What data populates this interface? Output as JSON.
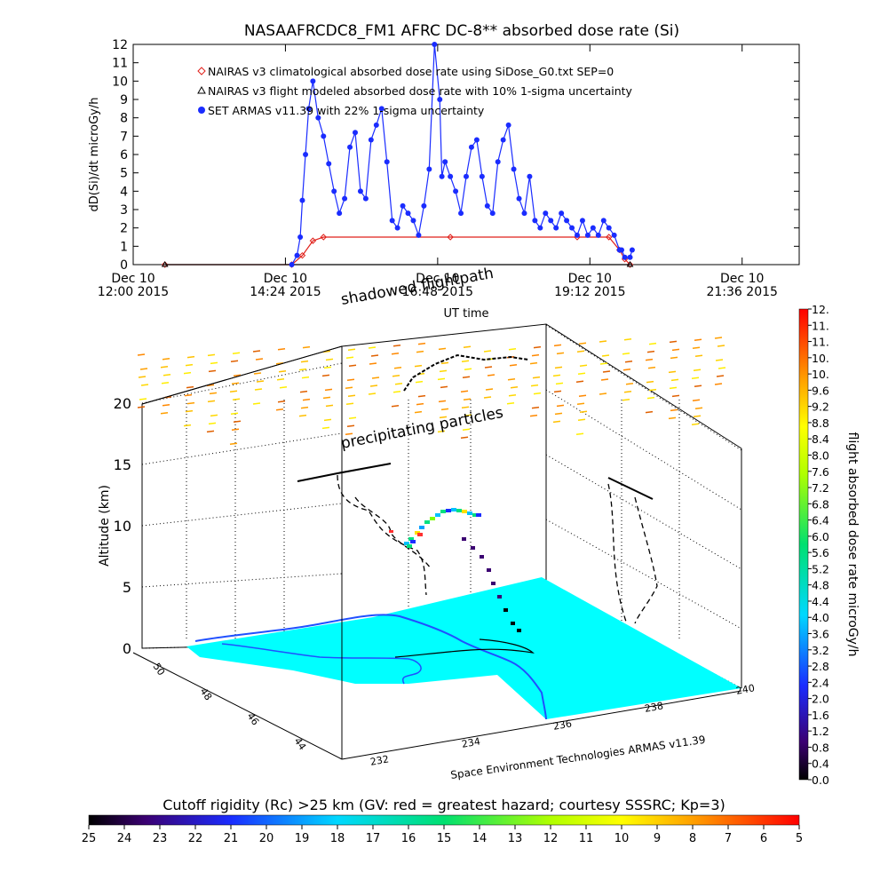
{
  "chart_data": [
    {
      "type": "line",
      "title": "NASAAFRCDC8_FM1 AFRC DC-8** absorbed dose rate (Si)",
      "xlabel": "UT time",
      "ylabel": "dD(Si)/dt microGy/h",
      "ylim": [
        0,
        12
      ],
      "yticks": [
        "0",
        "1",
        "2",
        "3",
        "4",
        "5",
        "6",
        "7",
        "8",
        "9",
        "10",
        "11",
        "12"
      ],
      "xticks": [
        {
          "day": "Dec 10",
          "time": "12:00 2015"
        },
        {
          "day": "Dec 10",
          "time": "14:24 2015"
        },
        {
          "day": "Dec 10",
          "time": "16:48 2015"
        },
        {
          "day": "Dec 10",
          "time": "19:12 2015"
        },
        {
          "day": "Dec 10",
          "time": "21:36 2015"
        }
      ],
      "legend": [
        {
          "label": "NAIRAS v3 climatological absorbed dose rate using SiDose_G0.txt SEP=0",
          "marker": "diamond",
          "color": "#e0201a"
        },
        {
          "label": "NAIRAS v3 flight modeled absorbed dose rate with 10% 1-sigma uncertainty",
          "marker": "triangle",
          "color": "#000000"
        },
        {
          "label": "SET ARMAS v11.39 with 22% 1-sigma uncertainty",
          "marker": "circle",
          "color": "#1a2cff"
        }
      ],
      "series": [
        {
          "name": "SET ARMAS v11.39 with 22% 1-sigma uncertainty",
          "color": "#1a2cff",
          "x": [
            "14:30",
            "14:35",
            "14:38",
            "14:40",
            "14:43",
            "14:46",
            "14:50",
            "14:55",
            "15:00",
            "15:05",
            "15:10",
            "15:15",
            "15:20",
            "15:25",
            "15:30",
            "15:35",
            "15:40",
            "15:45",
            "15:50",
            "15:55",
            "16:00",
            "16:05",
            "16:10",
            "16:15",
            "16:20",
            "16:25",
            "16:30",
            "16:35",
            "16:40",
            "16:45",
            "16:50",
            "16:52",
            "16:55",
            "17:00",
            "17:05",
            "17:10",
            "17:15",
            "17:20",
            "17:25",
            "17:30",
            "17:35",
            "17:40",
            "17:45",
            "17:50",
            "17:55",
            "18:00",
            "18:05",
            "18:10",
            "18:15",
            "18:20",
            "18:25",
            "18:30",
            "18:35",
            "18:40",
            "18:45",
            "18:50",
            "18:55",
            "19:00",
            "19:05",
            "19:10",
            "19:15",
            "19:20",
            "19:25",
            "19:30",
            "19:35",
            "19:40",
            "19:42",
            "19:45",
            "19:50",
            "19:52"
          ],
          "values": [
            0,
            0.5,
            1.5,
            3.5,
            6,
            8.5,
            10,
            8,
            7,
            5.5,
            4,
            2.8,
            3.6,
            6.4,
            7.2,
            4,
            3.6,
            6.8,
            7.6,
            8.5,
            5.6,
            2.4,
            2,
            3.2,
            2.8,
            2.4,
            1.6,
            3.2,
            5.2,
            12,
            9,
            4.8,
            5.6,
            4.8,
            4,
            2.8,
            4.8,
            6.4,
            6.8,
            4.8,
            3.2,
            2.8,
            5.6,
            6.8,
            7.6,
            5.2,
            3.6,
            2.8,
            4.8,
            2.4,
            2,
            2.8,
            2.4,
            2,
            2.8,
            2.4,
            2,
            1.6,
            2.4,
            1.6,
            2,
            1.6,
            2.4,
            2,
            1.6,
            0.8,
            0.8,
            0.4,
            0.4,
            0.8
          ]
        },
        {
          "name": "NAIRAS v3 climatological absorbed dose rate using SiDose_G0.txt SEP=0",
          "color": "#e0201a",
          "x": [
            "12:30",
            "14:30",
            "14:40",
            "14:50",
            "15:00",
            "17:00",
            "19:00",
            "19:30",
            "19:40",
            "19:45",
            "19:50"
          ],
          "values": [
            0,
            0,
            0.5,
            1.3,
            1.5,
            1.5,
            1.5,
            1.5,
            0.8,
            0.3,
            0
          ]
        },
        {
          "name": "NAIRAS v3 flight modeled absorbed dose rate with 10% 1-sigma uncertainty",
          "color": "#000000",
          "x": [
            "12:30",
            "19:50"
          ],
          "values": [
            0,
            0
          ]
        }
      ]
    },
    {
      "type": "3d-trajectory",
      "zlabel": "Altitude (km)",
      "zticks": [
        "0",
        "5",
        "10",
        "15",
        "20"
      ],
      "lat_ticks": [
        "50",
        "48",
        "46",
        "44"
      ],
      "lon_ticks": [
        "232",
        "234",
        "236",
        "238",
        "240"
      ],
      "annotations": [
        "shadowed flightpath",
        "precipitating particles"
      ],
      "credit": "Space Environment Technologies ARMAS v11.39",
      "surface_color": "#00ffff",
      "coast_color": "#2050ff"
    },
    {
      "type": "colorbar",
      "label": "flight absorbed dose rate microGy/h",
      "ticks": [
        "0.0",
        "0.4",
        "0.8",
        "1.2",
        "1.6",
        "2.0",
        "2.4",
        "2.8",
        "3.2",
        "3.6",
        "4.0",
        "4.4",
        "4.8",
        "5.2",
        "5.6",
        "6.0",
        "6.4",
        "6.8",
        "7.2",
        "7.6",
        "8.0",
        "8.4",
        "8.8",
        "9.2",
        "9.6",
        "10.",
        "10.",
        "11.",
        "11.",
        "12."
      ]
    },
    {
      "type": "colorbar",
      "label": "Cutoff rigidity (Rc) >25 km (GV: red = greatest hazard; courtesy SSSRC; Kp=3)",
      "ticks": [
        "25",
        "24",
        "23",
        "22",
        "21",
        "20",
        "19",
        "18",
        "17",
        "16",
        "15",
        "14",
        "13",
        "12",
        "11",
        "10",
        "9",
        "8",
        "7",
        "6",
        "5"
      ]
    }
  ]
}
